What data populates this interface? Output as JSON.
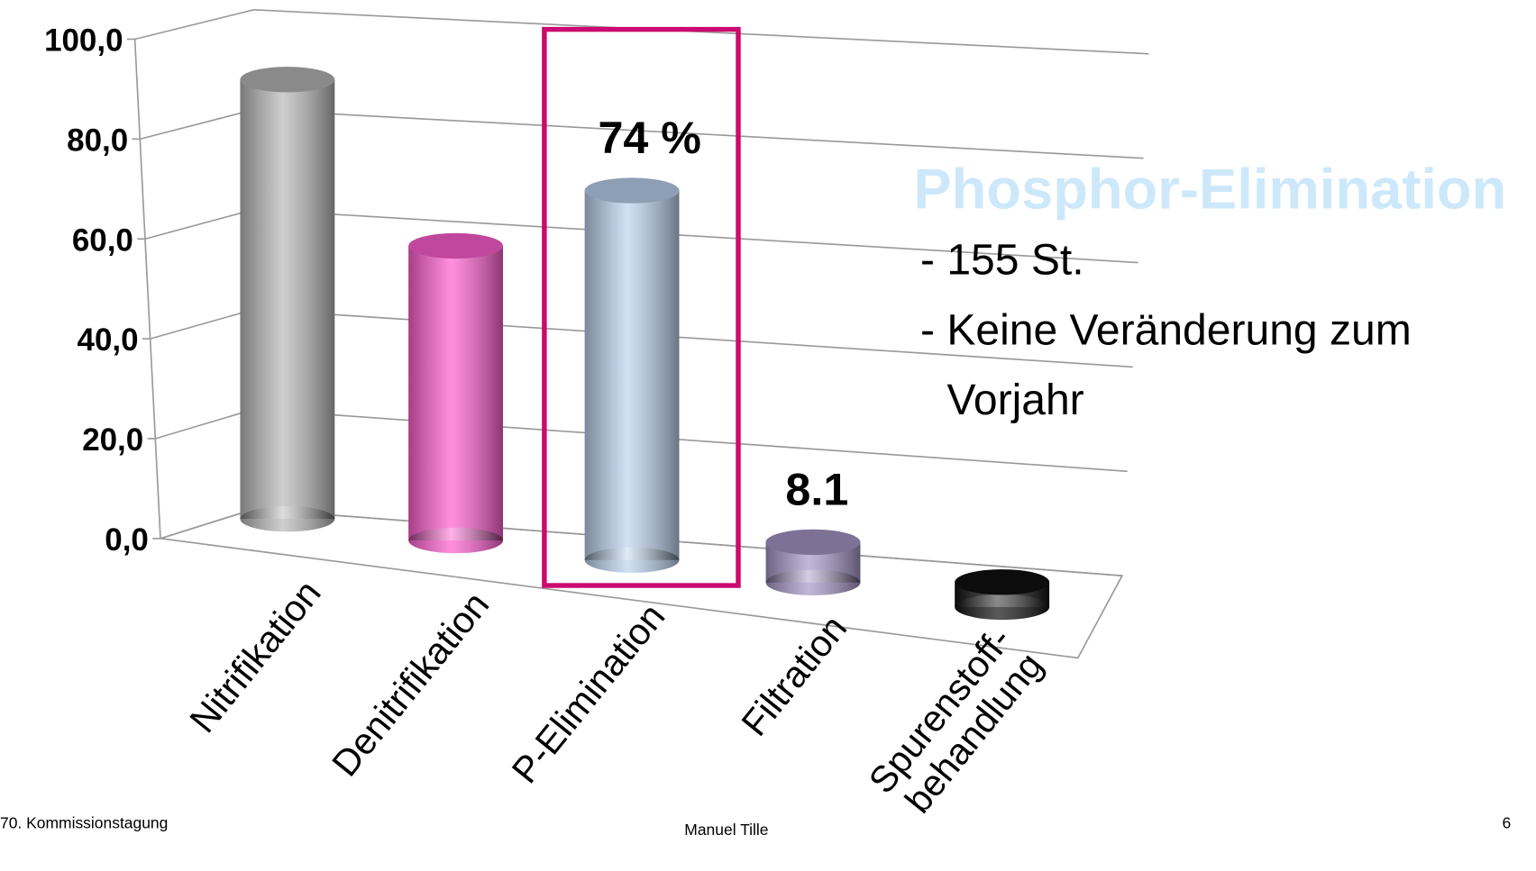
{
  "chart_data": {
    "type": "bar3d",
    "categories": [
      "Nitrifikation",
      "Denitrifikation",
      "P-Elimination",
      "Filtration",
      "Spurenstoff-\nbehandlung"
    ],
    "values": [
      88,
      59,
      74,
      8.1,
      5
    ],
    "value_labels": [
      null,
      null,
      "74 %",
      "8.1",
      null
    ],
    "colors": [
      "#b9b9b9",
      "#ff5fd0",
      "#bcd4f0",
      "#a897c8",
      "#111111"
    ],
    "ylim": [
      0,
      100
    ],
    "yticks": [
      {
        "value": 0,
        "label": "0,0"
      },
      {
        "value": 20,
        "label": "20,0"
      },
      {
        "value": 40,
        "label": "40,0"
      },
      {
        "value": 60,
        "label": "60,0"
      },
      {
        "value": 80,
        "label": "80,0"
      },
      {
        "value": 100,
        "label": "100,0"
      }
    ],
    "grid": true,
    "highlight_color": "#cc0a6f",
    "annotations": [
      "Phosphor-Elimination",
      "- 155 St.",
      "- Keine Veränderung zum",
      "Vorjahr"
    ]
  },
  "footer": {
    "left": "70. Kommissionstagung",
    "center": "Manuel Tille",
    "right": "6"
  }
}
